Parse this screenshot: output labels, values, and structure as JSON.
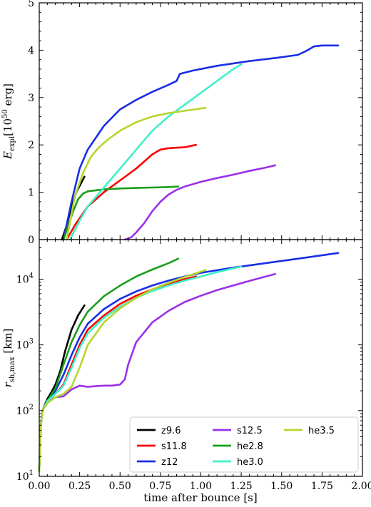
{
  "chart_data": [
    {
      "type": "line",
      "panel": "top",
      "xlabel": "",
      "ylabel": "E_expl [10^50 erg]",
      "ylabel_parts": {
        "main": "E",
        "sub": "expl",
        "unit_pre": "[10",
        "unit_exp": "50",
        "unit_post": " erg]"
      },
      "xlim": [
        0.0,
        2.0
      ],
      "ylim": [
        0,
        5
      ],
      "yscale": "linear",
      "yticks": [
        "0",
        "1",
        "2",
        "3",
        "4",
        "5"
      ],
      "grid": false,
      "series": [
        {
          "name": "z9.6",
          "color": "#000000",
          "x": [
            0.14,
            0.17,
            0.2,
            0.23,
            0.26,
            0.28
          ],
          "y": [
            0.0,
            0.3,
            0.7,
            1.0,
            1.2,
            1.33
          ]
        },
        {
          "name": "s11.8",
          "color": "#ff0000",
          "x": [
            0.17,
            0.22,
            0.3,
            0.4,
            0.5,
            0.6,
            0.7,
            0.75,
            0.8,
            0.9,
            0.97
          ],
          "y": [
            0.0,
            0.3,
            0.7,
            1.0,
            1.25,
            1.5,
            1.8,
            1.9,
            1.93,
            1.95,
            2.0
          ]
        },
        {
          "name": "z12",
          "color": "#1a2ee6",
          "x": [
            0.15,
            0.2,
            0.25,
            0.3,
            0.4,
            0.5,
            0.6,
            0.7,
            0.8,
            0.85,
            0.87,
            0.95,
            1.1,
            1.3,
            1.45,
            1.6,
            1.65,
            1.7,
            1.75,
            1.85
          ],
          "y": [
            0.0,
            0.8,
            1.5,
            1.9,
            2.4,
            2.75,
            2.95,
            3.12,
            3.27,
            3.35,
            3.5,
            3.57,
            3.67,
            3.77,
            3.83,
            3.9,
            3.98,
            4.08,
            4.1,
            4.1
          ]
        },
        {
          "name": "s12.5",
          "color": "#9b30e8",
          "x": [
            0.53,
            0.57,
            0.6,
            0.65,
            0.7,
            0.75,
            0.8,
            0.85,
            0.9,
            1.0,
            1.1,
            1.2,
            1.3,
            1.4,
            1.46
          ],
          "y": [
            0.0,
            0.05,
            0.15,
            0.35,
            0.6,
            0.8,
            0.95,
            1.05,
            1.12,
            1.22,
            1.3,
            1.37,
            1.45,
            1.52,
            1.57
          ]
        },
        {
          "name": "he2.8",
          "color": "#1b9e1b",
          "x": [
            0.15,
            0.18,
            0.21,
            0.24,
            0.27,
            0.3,
            0.35,
            0.4,
            0.5,
            0.6,
            0.7,
            0.8,
            0.86
          ],
          "y": [
            0.0,
            0.3,
            0.6,
            0.85,
            0.97,
            1.02,
            1.04,
            1.06,
            1.08,
            1.09,
            1.1,
            1.11,
            1.12
          ]
        },
        {
          "name": "he3.0",
          "color": "#40f0c8",
          "x": [
            0.19,
            0.25,
            0.3,
            0.4,
            0.5,
            0.6,
            0.7,
            0.8,
            0.9,
            1.0,
            1.1,
            1.2,
            1.25
          ],
          "y": [
            0.0,
            0.4,
            0.7,
            1.1,
            1.5,
            1.9,
            2.3,
            2.6,
            2.85,
            3.1,
            3.35,
            3.6,
            3.7
          ]
        },
        {
          "name": "he3.5",
          "color": "#b5d630",
          "x": [
            0.17,
            0.22,
            0.27,
            0.32,
            0.37,
            0.42,
            0.5,
            0.6,
            0.7,
            0.8,
            0.9,
            1.0,
            1.03
          ],
          "y": [
            0.0,
            0.9,
            1.4,
            1.75,
            1.95,
            2.1,
            2.3,
            2.48,
            2.6,
            2.67,
            2.72,
            2.77,
            2.78
          ]
        }
      ]
    },
    {
      "type": "line",
      "panel": "bottom",
      "xlabel": "time after bounce [s]",
      "ylabel": "r_sh,max [km]",
      "ylabel_parts": {
        "main": "r",
        "sub": "sh,max",
        "unit": " [km]"
      },
      "xlim": [
        0.0,
        2.0
      ],
      "ylim": [
        10,
        40000
      ],
      "yscale": "log",
      "xticks": [
        "0.00",
        "0.25",
        "0.50",
        "0.75",
        "1.00",
        "1.25",
        "1.50",
        "1.75",
        "2.00"
      ],
      "yticks": [
        {
          "base": "10",
          "exp": "1"
        },
        {
          "base": "10",
          "exp": "2"
        },
        {
          "base": "10",
          "exp": "3"
        },
        {
          "base": "10",
          "exp": "4"
        }
      ],
      "grid": false,
      "legend_position": "lower-right",
      "series": [
        {
          "name": "z9.6",
          "color": "#000000",
          "x": [
            0.0,
            0.01,
            0.02,
            0.05,
            0.08,
            0.1,
            0.13,
            0.16,
            0.2,
            0.24,
            0.28
          ],
          "y": [
            12,
            60,
            100,
            150,
            200,
            250,
            400,
            800,
            1700,
            2800,
            4000
          ]
        },
        {
          "name": "s11.8",
          "color": "#ff0000",
          "x": [
            0.0,
            0.01,
            0.02,
            0.05,
            0.1,
            0.15,
            0.2,
            0.25,
            0.3,
            0.4,
            0.5,
            0.6,
            0.7,
            0.8,
            0.9,
            0.97
          ],
          "y": [
            12,
            60,
            100,
            140,
            180,
            250,
            500,
            1000,
            1700,
            2800,
            4200,
            5600,
            7000,
            8500,
            10000,
            11000
          ]
        },
        {
          "name": "z12",
          "color": "#1a2ee6",
          "x": [
            0.0,
            0.01,
            0.02,
            0.05,
            0.1,
            0.15,
            0.2,
            0.25,
            0.3,
            0.4,
            0.5,
            0.6,
            0.7,
            0.8,
            0.9,
            1.0,
            1.2,
            1.4,
            1.6,
            1.85
          ],
          "y": [
            12,
            60,
            100,
            140,
            200,
            350,
            700,
            1300,
            2100,
            3500,
            5000,
            6500,
            8000,
            9500,
            11000,
            12500,
            15000,
            17500,
            20500,
            25000
          ]
        },
        {
          "name": "s12.5",
          "color": "#9b30e8",
          "x": [
            0.0,
            0.01,
            0.02,
            0.05,
            0.08,
            0.1,
            0.15,
            0.2,
            0.25,
            0.3,
            0.35,
            0.4,
            0.45,
            0.5,
            0.53,
            0.55,
            0.6,
            0.7,
            0.8,
            0.9,
            1.0,
            1.1,
            1.2,
            1.3,
            1.46
          ],
          "y": [
            12,
            60,
            100,
            130,
            150,
            160,
            165,
            210,
            240,
            230,
            235,
            240,
            240,
            250,
            300,
            500,
            1100,
            2200,
            3300,
            4500,
            5600,
            6800,
            8000,
            9400,
            12000
          ]
        },
        {
          "name": "he2.8",
          "color": "#1b9e1b",
          "x": [
            0.0,
            0.01,
            0.02,
            0.05,
            0.1,
            0.15,
            0.2,
            0.25,
            0.3,
            0.4,
            0.5,
            0.6,
            0.7,
            0.8,
            0.86
          ],
          "y": [
            12,
            60,
            100,
            140,
            220,
            500,
            1100,
            2000,
            3200,
            5500,
            8000,
            11000,
            14000,
            17500,
            20500
          ]
        },
        {
          "name": "he3.0",
          "color": "#40f0c8",
          "x": [
            0.0,
            0.01,
            0.02,
            0.05,
            0.1,
            0.15,
            0.2,
            0.25,
            0.3,
            0.4,
            0.5,
            0.6,
            0.7,
            0.8,
            0.9,
            1.0,
            1.1,
            1.25
          ],
          "y": [
            12,
            60,
            100,
            140,
            180,
            240,
            450,
            900,
            1500,
            2600,
            3800,
            5200,
            6600,
            8000,
            9500,
            11000,
            12800,
            15500
          ]
        },
        {
          "name": "he3.5",
          "color": "#b5d630",
          "x": [
            0.0,
            0.01,
            0.02,
            0.05,
            0.1,
            0.15,
            0.2,
            0.25,
            0.3,
            0.4,
            0.5,
            0.6,
            0.7,
            0.8,
            0.9,
            1.0,
            1.03
          ],
          "y": [
            12,
            60,
            100,
            130,
            160,
            180,
            230,
            450,
            1000,
            2200,
            3600,
            5200,
            7000,
            8800,
            10800,
            13000,
            13800
          ]
        }
      ]
    }
  ],
  "legend": {
    "position": "lower-right",
    "columns": 3,
    "entries": [
      {
        "name": "z9.6",
        "color": "#000000"
      },
      {
        "name": "s11.8",
        "color": "#ff0000"
      },
      {
        "name": "z12",
        "color": "#1a2ee6"
      },
      {
        "name": "s12.5",
        "color": "#9b30e8"
      },
      {
        "name": "he2.8",
        "color": "#1b9e1b"
      },
      {
        "name": "he3.0",
        "color": "#40f0c8"
      },
      {
        "name": "he3.5",
        "color": "#b5d630"
      }
    ]
  }
}
